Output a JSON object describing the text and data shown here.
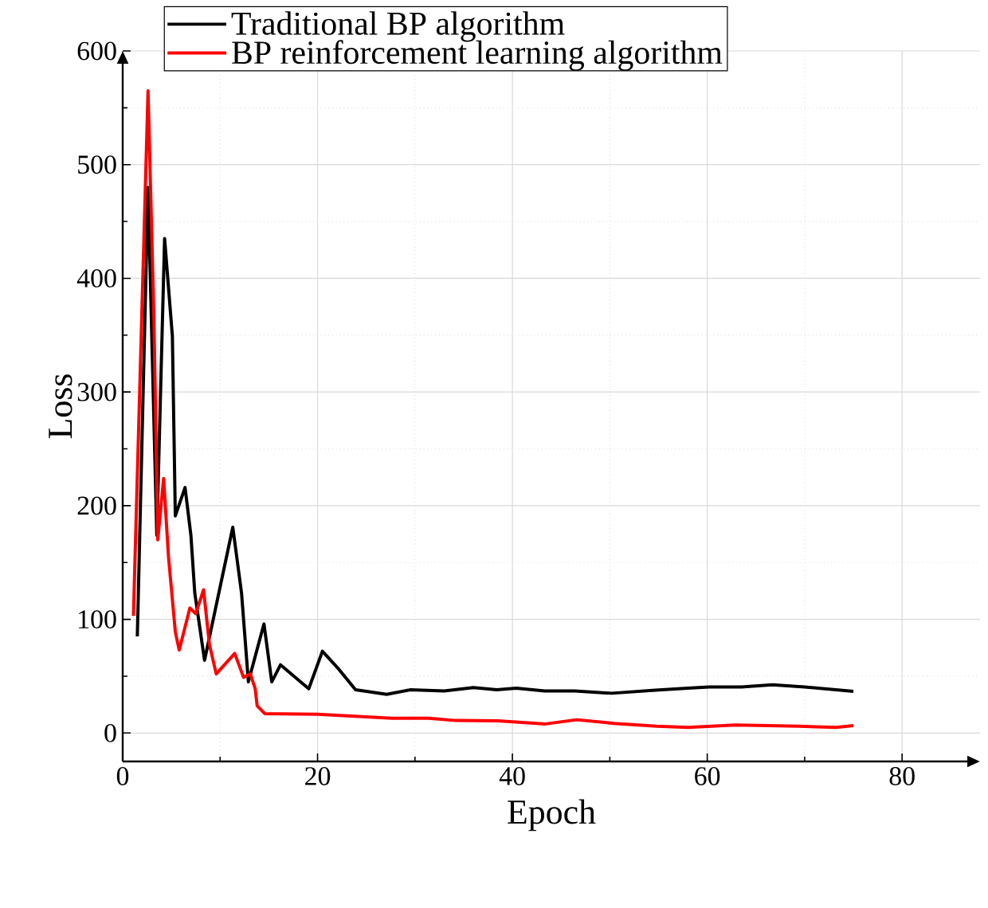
{
  "chart_data": {
    "type": "line",
    "xlabel": "Epoch",
    "ylabel": "Loss",
    "xlim": [
      0,
      88
    ],
    "ylim": [
      -25,
      600
    ],
    "xticks": [
      0,
      20,
      40,
      60,
      80
    ],
    "yticks": [
      0,
      100,
      200,
      300,
      400,
      500,
      600
    ],
    "grid": true,
    "legend": "top left",
    "marker": "none",
    "line_style": "solid",
    "series": [
      {
        "name": "Traditional BP algorithm",
        "color": "#000000",
        "x": [
          1.5,
          2.6,
          3.5,
          4.3,
          5.1,
          5.4,
          6.4,
          7.0,
          7.4,
          8.4,
          11.3,
          12.2,
          12.9,
          14.5,
          15.3,
          16.2,
          19.1,
          20.5,
          22.2,
          23.9,
          27.1,
          29.5,
          33,
          36,
          38.4,
          40.4,
          43.3,
          46.4,
          50.2,
          54.7,
          58,
          60.2,
          63.5,
          66.7,
          70,
          75
        ],
        "values": [
          85,
          480,
          174,
          435,
          349,
          191,
          216,
          174,
          123,
          64,
          181,
          123,
          45,
          96,
          45,
          60,
          39,
          72,
          56,
          38,
          34,
          38,
          37,
          40,
          38,
          39.5,
          37,
          37,
          35,
          37.7,
          39.5,
          40.5,
          40.5,
          42.4,
          40.5,
          36.7
        ]
      },
      {
        "name": "BP reinforcement learning algorithm",
        "color": "#ff0000",
        "x": [
          1.1,
          2.6,
          3.2,
          3.6,
          4.2,
          4.7,
          5.4,
          5.8,
          6.9,
          7.5,
          8.3,
          8.9,
          9.6,
          11.5,
          12.4,
          13.1,
          13.6,
          13.8,
          14.6,
          20,
          27.6,
          31.4,
          34.2,
          38.5,
          43.4,
          46.6,
          50.4,
          54.8,
          58,
          62.9,
          69.4,
          73.2,
          75
        ],
        "values": [
          103,
          565,
          367,
          170,
          224,
          155,
          89,
          73,
          110,
          105,
          126,
          78,
          52,
          70,
          49,
          52,
          39,
          24,
          17,
          16.5,
          13,
          13,
          11,
          10.8,
          8,
          11.7,
          8.5,
          6,
          5,
          7,
          6,
          5,
          6.6
        ]
      }
    ]
  }
}
